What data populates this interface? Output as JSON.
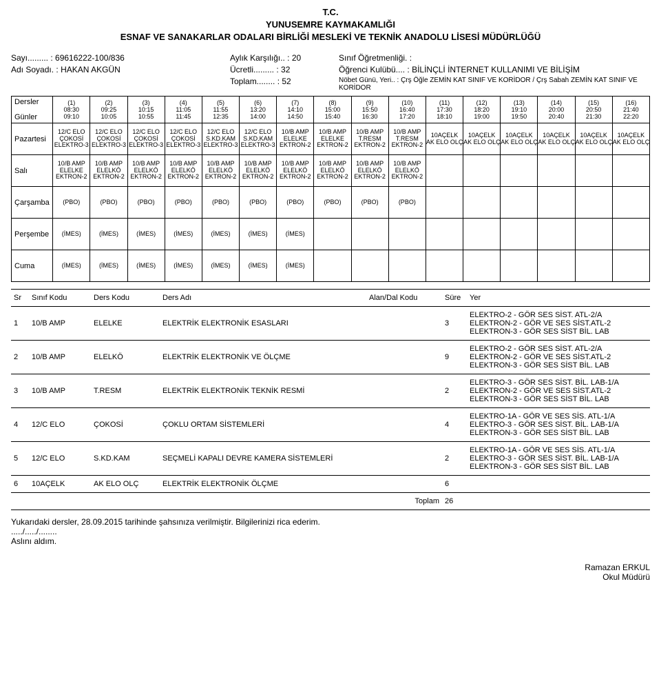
{
  "header": {
    "tc": "T.C.",
    "line1": "YUNUSEMRE KAYMAKAMLIĞI",
    "line2": "ESNAF VE SANAKARLAR ODALARI BİRLİĞİ MESLEKİ VE TEKNİK ANADOLU LİSESİ MÜDÜRLÜĞÜ"
  },
  "meta": {
    "sayi_label": "Sayı......... :",
    "sayi": "69616222-100/836",
    "adi_label": "Adı Soyadı. :",
    "adi": "HAKAN AKGÜN",
    "aylik_label": "Aylık Karşılığı.. :",
    "aylik": "20",
    "ucretli_label": "Ücretli......... :",
    "ucretli": "32",
    "toplam_label": "Toplam........ :",
    "toplam": "52",
    "sinif_label": "Sınıf Öğretmenliği. :",
    "sinif": "",
    "kulup_label": "Öğrenci Kulübü.... :",
    "kulup": "BİLİNÇLİ İNTERNET KULLANIMI VE BİLİŞİM",
    "nobet_label": "Nöbet Günü, Yeri.. :",
    "nobet": "Çrş Öğle ZEMİN KAT SINIF VE KORİDOR / Çrş Sabah ZEMİN KAT SINIF VE KORİDOR"
  },
  "sched": {
    "left_top": "Dersler",
    "left_bot": "Günler",
    "periods": [
      {
        "n": "(1)",
        "s": "08:30",
        "e": "09:10"
      },
      {
        "n": "(2)",
        "s": "09:25",
        "e": "10:05"
      },
      {
        "n": "(3)",
        "s": "10:15",
        "e": "10:55"
      },
      {
        "n": "(4)",
        "s": "11:05",
        "e": "11:45"
      },
      {
        "n": "(5)",
        "s": "11:55",
        "e": "12:35"
      },
      {
        "n": "(6)",
        "s": "13:20",
        "e": "14:00"
      },
      {
        "n": "(7)",
        "s": "14:10",
        "e": "14:50"
      },
      {
        "n": "(8)",
        "s": "15:00",
        "e": "15:40"
      },
      {
        "n": "(9)",
        "s": "15:50",
        "e": "16:30"
      },
      {
        "n": "(10)",
        "s": "16:40",
        "e": "17:20"
      },
      {
        "n": "(11)",
        "s": "17:30",
        "e": "18:10"
      },
      {
        "n": "(12)",
        "s": "18:20",
        "e": "19:00"
      },
      {
        "n": "(13)",
        "s": "19:10",
        "e": "19:50"
      },
      {
        "n": "(14)",
        "s": "20:00",
        "e": "20:40"
      },
      {
        "n": "(15)",
        "s": "20:50",
        "e": "21:30"
      },
      {
        "n": "(16)",
        "s": "21:40",
        "e": "22:20"
      }
    ],
    "days": [
      {
        "name": "Pazartesi",
        "cells": [
          {
            "a": "12/C ELO",
            "b": "ÇOKOSİ",
            "c": "ELEKTRO-3"
          },
          {
            "a": "12/C ELO",
            "b": "ÇOKOSİ",
            "c": "ELEKTRO-3"
          },
          {
            "a": "12/C ELO",
            "b": "ÇOKOSİ",
            "c": "ELEKTRO-3"
          },
          {
            "a": "12/C ELO",
            "b": "ÇOKOSİ",
            "c": "ELEKTRO-3"
          },
          {
            "a": "12/C ELO",
            "b": "S.KD.KAM",
            "c": "ELEKTRO-3"
          },
          {
            "a": "12/C ELO",
            "b": "S.KD.KAM",
            "c": "ELEKTRO-3"
          },
          {
            "a": "10/B AMP",
            "b": "ELELKE",
            "c": "EKTRON-2"
          },
          {
            "a": "10/B AMP",
            "b": "ELELKE",
            "c": "EKTRON-2"
          },
          {
            "a": "10/B AMP",
            "b": "T.RESM",
            "c": "EKTRON-2"
          },
          {
            "a": "10/B AMP",
            "b": "T.RESM",
            "c": "EKTRON-2"
          },
          {
            "a": "10AÇELK",
            "b": "AK ELO OLÇ",
            "c": ""
          },
          {
            "a": "10AÇELK",
            "b": "AK ELO OLÇ",
            "c": ""
          },
          {
            "a": "10AÇELK",
            "b": "AK ELO OLÇ",
            "c": ""
          },
          {
            "a": "10AÇELK",
            "b": "AK ELO OLÇ",
            "c": ""
          },
          {
            "a": "10AÇELK",
            "b": "AK ELO OLÇ",
            "c": ""
          },
          {
            "a": "10AÇELK",
            "b": "AK ELO OLÇ",
            "c": ""
          }
        ]
      },
      {
        "name": "Salı",
        "cells": [
          {
            "a": "10/B AMP",
            "b": "ELELKE",
            "c": "EKTRON-2"
          },
          {
            "a": "10/B AMP",
            "b": "ELELKÖ",
            "c": "EKTRON-2"
          },
          {
            "a": "10/B AMP",
            "b": "ELELKÖ",
            "c": "EKTRON-2"
          },
          {
            "a": "10/B AMP",
            "b": "ELELKÖ",
            "c": "EKTRON-2"
          },
          {
            "a": "10/B AMP",
            "b": "ELELKÖ",
            "c": "EKTRON-2"
          },
          {
            "a": "10/B AMP",
            "b": "ELELKÖ",
            "c": "EKTRON-2"
          },
          {
            "a": "10/B AMP",
            "b": "ELELKÖ",
            "c": "EKTRON-2"
          },
          {
            "a": "10/B AMP",
            "b": "ELELKÖ",
            "c": "EKTRON-2"
          },
          {
            "a": "10/B AMP",
            "b": "ELELKÖ",
            "c": "EKTRON-2"
          },
          {
            "a": "10/B AMP",
            "b": "ELELKÖ",
            "c": "EKTRON-2"
          },
          null,
          null,
          null,
          null,
          null,
          null
        ]
      },
      {
        "name": "Çarşamba",
        "cells": [
          {
            "a": "(PBO)"
          },
          {
            "a": "(PBO)"
          },
          {
            "a": "(PBO)"
          },
          {
            "a": "(PBO)"
          },
          {
            "a": "(PBO)"
          },
          {
            "a": "(PBO)"
          },
          {
            "a": "(PBO)"
          },
          {
            "a": "(PBO)"
          },
          {
            "a": "(PBO)"
          },
          {
            "a": "(PBO)"
          },
          null,
          null,
          null,
          null,
          null,
          null
        ]
      },
      {
        "name": "Perşembe",
        "cells": [
          {
            "a": "(İMES)"
          },
          {
            "a": "(İMES)"
          },
          {
            "a": "(İMES)"
          },
          {
            "a": "(İMES)"
          },
          {
            "a": "(İMES)"
          },
          {
            "a": "(İMES)"
          },
          {
            "a": "(İMES)"
          },
          null,
          null,
          null,
          null,
          null,
          null,
          null,
          null,
          null
        ]
      },
      {
        "name": "Cuma",
        "cells": [
          {
            "a": "(İMES)"
          },
          {
            "a": "(İMES)"
          },
          {
            "a": "(İMES)"
          },
          {
            "a": "(İMES)"
          },
          {
            "a": "(İMES)"
          },
          {
            "a": "(İMES)"
          },
          {
            "a": "(İMES)"
          },
          null,
          null,
          null,
          null,
          null,
          null,
          null,
          null,
          null
        ]
      }
    ]
  },
  "courses": {
    "headers": {
      "sr": "Sr",
      "sinif": "Sınıf Kodu",
      "ders": "Ders Kodu",
      "adi": "Ders Adı",
      "alan": "Alan/Dal Kodu",
      "sure": "Süre",
      "yer": "Yer"
    },
    "rows": [
      {
        "sr": "1",
        "sinif": "10/B AMP",
        "ders": "ELELKE",
        "adi": "ELEKTRİK ELEKTRONİK ESASLARI",
        "alan": "",
        "sure": "3",
        "yer": "ELEKTRO-2 - GÖR SES SİST. ATL-2/A\nELEKTRON-2 - GÖR VE SES SİST.ATL-2\nELEKTRON-3 - GÖR SES SİST BİL. LAB"
      },
      {
        "sr": "2",
        "sinif": "10/B AMP",
        "ders": "ELELKÖ",
        "adi": "ELEKTRİK ELEKTRONİK VE ÖLÇME",
        "alan": "",
        "sure": "9",
        "yer": "ELEKTRO-2 - GÖR SES SİST. ATL-2/A\nELEKTRON-2 - GÖR VE SES SİST.ATL-2\nELEKTRON-3 - GÖR SES SİST BİL. LAB"
      },
      {
        "sr": "3",
        "sinif": "10/B AMP",
        "ders": "T.RESM",
        "adi": "ELEKTRİK ELEKTRONİK TEKNİK RESMİ",
        "alan": "",
        "sure": "2",
        "yer": "ELEKTRO-3 - GÖR SES SİST. BİL. LAB-1/A\nELEKTRON-2 - GÖR VE SES SİST.ATL-2\nELEKTRON-3 - GÖR SES SİST BİL. LAB"
      },
      {
        "sr": "4",
        "sinif": "12/C ELO",
        "ders": "ÇOKOSİ",
        "adi": "ÇOKLU ORTAM SİSTEMLERİ",
        "alan": "",
        "sure": "4",
        "yer": "ELEKTRO-1A - GÖR VE SES SİS. ATL-1/A\nELEKTRO-3 - GÖR SES SİST. BİL. LAB-1/A\nELEKTRON-3 - GÖR SES SİST BİL. LAB"
      },
      {
        "sr": "5",
        "sinif": "12/C ELO",
        "ders": "S.KD.KAM",
        "adi": "SEÇMELİ KAPALI DEVRE KAMERA SİSTEMLERİ",
        "alan": "",
        "sure": "2",
        "yer": "ELEKTRO-1A - GÖR VE SES SİS. ATL-1/A\nELEKTRO-3 - GÖR SES SİST. BİL. LAB-1/A\nELEKTRON-3 - GÖR SES SİST BİL. LAB"
      },
      {
        "sr": "6",
        "sinif": "10AÇELK",
        "ders": "AK ELO OLÇ",
        "adi": "ELEKTRİK ELEKTRONİK ÖLÇME",
        "alan": "",
        "sure": "6",
        "yer": ""
      }
    ],
    "total_label": "Toplam",
    "total_value": "26"
  },
  "footer": {
    "line1": "Yukarıdaki dersler, 28.09.2015 tarihinde şahsınıza verilmiştir. Bilgilerinizi rica ederim.",
    "line2": "...../...../........",
    "line3": "Aslını aldım.",
    "sign_name": "Ramazan ERKUL",
    "sign_title": "Okul Müdürü"
  }
}
